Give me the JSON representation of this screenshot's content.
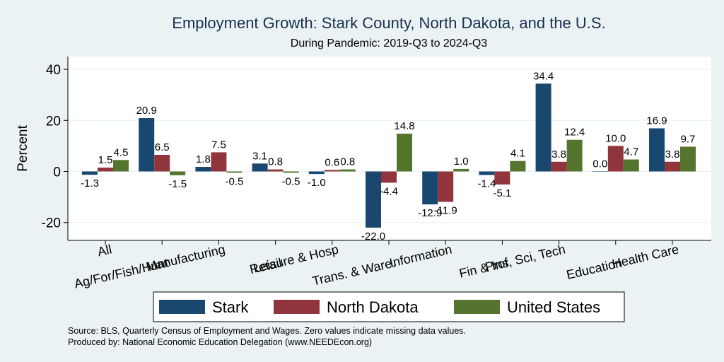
{
  "chart_data": {
    "type": "bar",
    "title": "Employment Growth: Stark County, North Dakota, and the U.S.",
    "subtitle": "During Pandemic: 2019-Q3 to 2024-Q3",
    "ylabel": "Percent",
    "xlabel": "",
    "ylim": [
      -27,
      45
    ],
    "yticks": [
      -20,
      0,
      20,
      40
    ],
    "grid": true,
    "legend_position": "bottom",
    "categories": [
      "All",
      "Ag/For/Fish/Hunt",
      "Manufacturing",
      "Retail",
      "Leisure & Hosp",
      "Trans. & Ware.",
      "Information",
      "Fin & Ins",
      "Prof, Sci, Tech",
      "Education",
      "Health Care"
    ],
    "series": [
      {
        "name": "Stark",
        "color": "#1a476f",
        "values": [
          -1.3,
          20.9,
          1.8,
          3.1,
          -1.0,
          -22.0,
          -12.9,
          -1.4,
          34.4,
          0.0,
          16.9
        ]
      },
      {
        "name": "North Dakota",
        "color": "#90353b",
        "values": [
          1.5,
          6.5,
          7.5,
          0.8,
          0.6,
          -4.4,
          -11.9,
          -5.1,
          3.8,
          10.0,
          3.8
        ]
      },
      {
        "name": "United States",
        "color": "#55752f",
        "values": [
          4.5,
          -1.5,
          -0.5,
          -0.5,
          0.8,
          14.8,
          1.0,
          4.1,
          12.4,
          4.7,
          9.7
        ]
      }
    ],
    "notes": [
      "Source: BLS, Quarterly Census of Employment and Wages. Zero values indicate missing data values.",
      "Produced by: National Economic Education Delegation (www.NEEDEcon.org)"
    ]
  }
}
